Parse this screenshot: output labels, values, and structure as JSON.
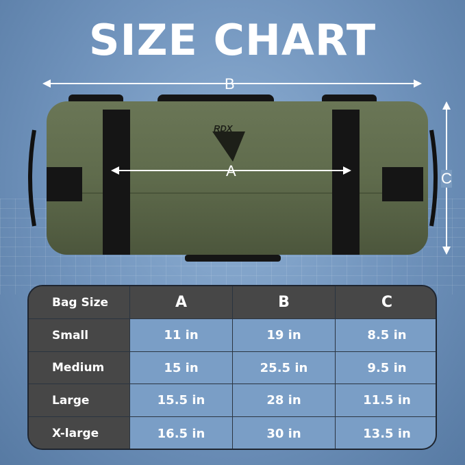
{
  "title": "SIZE CHART",
  "brand": "RDX",
  "dimension_labels": {
    "a": "A",
    "b": "B",
    "c": "C"
  },
  "colors": {
    "bag": "#5f6b4c",
    "table_header": "#474747",
    "table_cell": "#7a9ec6"
  },
  "table": {
    "headers": [
      "Bag Size",
      "A",
      "B",
      "C"
    ],
    "rows": [
      [
        "Small",
        "11 in",
        "19 in",
        "8.5 in"
      ],
      [
        "Medium",
        "15 in",
        "25.5 in",
        "9.5 in"
      ],
      [
        "Large",
        "15.5 in",
        "28 in",
        "11.5 in"
      ],
      [
        "X-large",
        "16.5 in",
        "30 in",
        "13.5 in"
      ]
    ]
  }
}
